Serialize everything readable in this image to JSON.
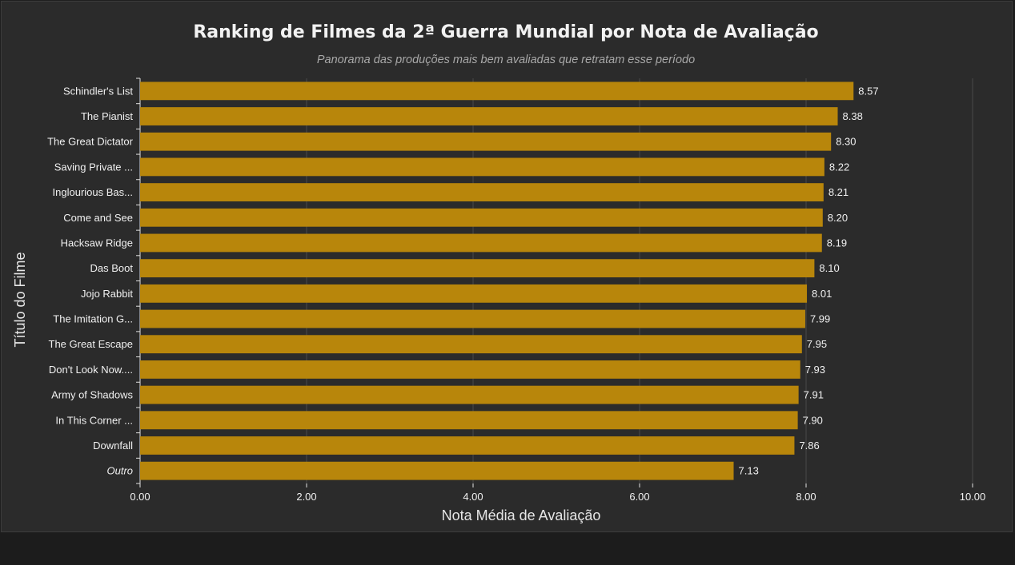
{
  "chart_data": {
    "type": "bar",
    "orientation": "horizontal",
    "title": "Ranking de Filmes da 2ª Guerra Mundial por Nota de Avaliação",
    "subtitle": "Panorama das produções mais bem avaliadas que retratam esse período",
    "xlabel": "Nota Média de Avaliação",
    "ylabel": "Título do Filme",
    "xlim": [
      0,
      10
    ],
    "xticks": [
      "0.00",
      "2.00",
      "4.00",
      "6.00",
      "8.00",
      "10.00"
    ],
    "grid": "vertical",
    "categories": [
      "Schindler's List",
      "The Pianist",
      "The Great Dictator",
      "Saving Private ...",
      "Inglourious Bas...",
      "Come and See",
      "Hacksaw Ridge",
      "Das Boot",
      "Jojo Rabbit",
      "The Imitation G...",
      "The Great Escape",
      "Don't Look Now....",
      "Army of Shadows",
      "In This Corner ...",
      "Downfall",
      "Outro"
    ],
    "values": [
      8.57,
      8.38,
      8.3,
      8.22,
      8.21,
      8.2,
      8.19,
      8.1,
      8.01,
      7.99,
      7.95,
      7.93,
      7.91,
      7.9,
      7.86,
      7.13
    ],
    "data_labels": [
      "8.57",
      "8.38",
      "8.30",
      "8.22",
      "8.21",
      "8.20",
      "8.19",
      "8.10",
      "8.01",
      "7.99",
      "7.95",
      "7.93",
      "7.91",
      "7.90",
      "7.86",
      "7.13"
    ],
    "italic_categories": [
      "Outro"
    ],
    "bar_color": "#b8860b"
  }
}
